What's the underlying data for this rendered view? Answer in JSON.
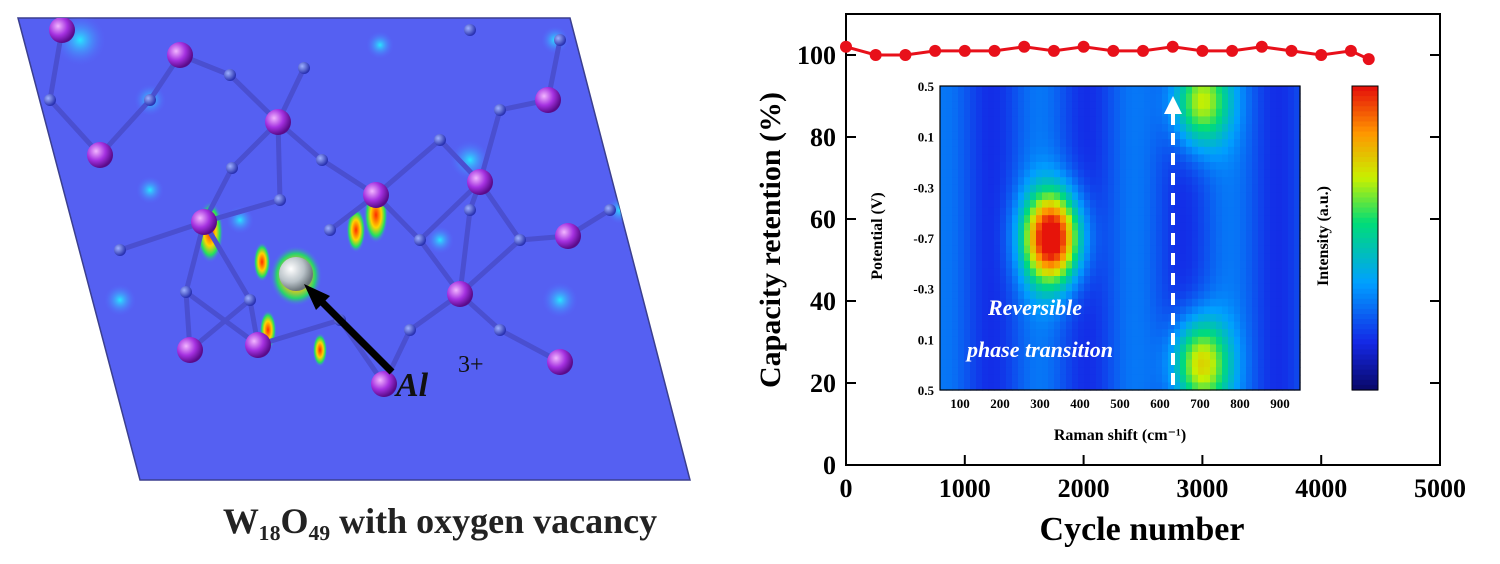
{
  "structure_panel": {
    "ion_label": "Al",
    "ion_charge": "3+",
    "caption": "W₁₈O₄₉ with oxygen vacancy"
  },
  "chart_data": [
    {
      "type": "scatter",
      "title": "",
      "xlabel": "Cycle number",
      "ylabel": "Capacity retention (%)",
      "xlim": [
        0,
        5000
      ],
      "ylim": [
        0,
        110
      ],
      "x_ticks": [
        "0",
        "1000",
        "2000",
        "3000",
        "4000",
        "5000"
      ],
      "y_ticks": [
        "0",
        "20",
        "40",
        "60",
        "80",
        "100"
      ],
      "series": [
        {
          "color": "#e8101a",
          "x": [
            0,
            250,
            500,
            750,
            1000,
            1250,
            1500,
            1750,
            2000,
            2250,
            2500,
            2750,
            3000,
            3250,
            3500,
            3750,
            4000,
            4250,
            4400
          ],
          "y": [
            102,
            100,
            100,
            101,
            101,
            101,
            102,
            101,
            102,
            101,
            101,
            102,
            101,
            101,
            102,
            101,
            100,
            101,
            99
          ]
        }
      ]
    },
    {
      "type": "heatmap",
      "xlabel": "Raman shift (cm⁻¹)",
      "ylabel": "Potential (V)",
      "colorbar_label": "Intensity (a.u.)",
      "x_ticks": [
        "100",
        "200",
        "300",
        "400",
        "500",
        "600",
        "700",
        "800",
        "900"
      ],
      "y_ticks": [
        "0.5",
        "0.1",
        "-0.3",
        "-0.7",
        "-0.3",
        "0.1",
        "0.5"
      ],
      "annotation": [
        "Reversible",
        "phase transition"
      ],
      "hotspots": [
        {
          "raman_shift": 330,
          "potential_index": 3,
          "level": 0.85
        },
        {
          "raman_shift": 700,
          "potential_index": 0.3,
          "level": 0.5
        },
        {
          "raman_shift": 700,
          "potential_index": 5.5,
          "level": 0.55
        }
      ]
    }
  ]
}
